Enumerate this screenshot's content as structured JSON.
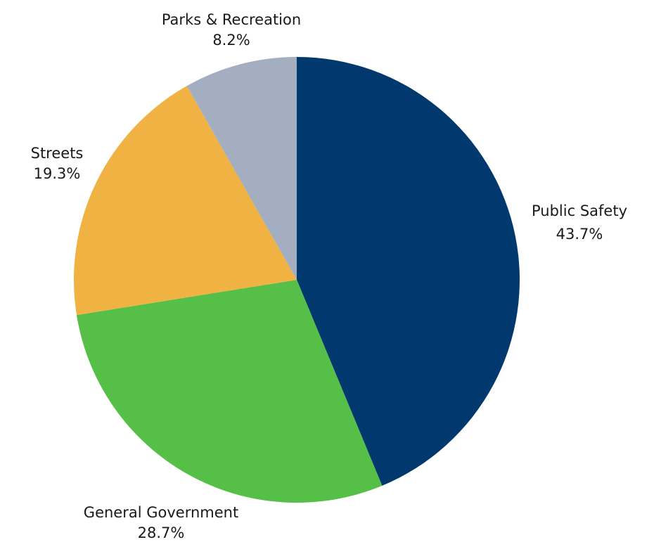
{
  "chart_data": {
    "type": "pie",
    "title": "",
    "start_angle": "12 o'clock",
    "direction": "clockwise",
    "categories": [
      "Public Safety",
      "General Government",
      "Streets",
      "Parks & Recreation"
    ],
    "values": [
      43.7,
      28.7,
      19.3,
      8.2
    ],
    "value_labels": [
      "43.7%",
      "28.7%",
      "19.3%",
      "8.2%"
    ],
    "colors": [
      "#01396e",
      "#55bf47",
      "#efb243",
      "#a3aec1"
    ],
    "legend": "none (direct labels)"
  },
  "labels": [
    {
      "name": "Public Safety",
      "pct": "43.7%"
    },
    {
      "name": "General Government",
      "pct": "28.7%"
    },
    {
      "name": "Streets",
      "pct": "19.3%"
    },
    {
      "name": "Parks & Recreation",
      "pct": "8.2%"
    }
  ]
}
